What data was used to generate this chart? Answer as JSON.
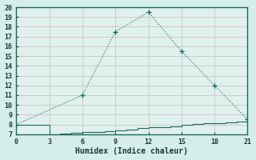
{
  "xlabel": "Humidex (Indice chaleur)",
  "bg_color": "#d6eeea",
  "plot_bg_color": "#dff0ed",
  "grid_color": "#c8bfc0",
  "line_color": "#1a6b5a",
  "line1_x": [
    0,
    6,
    9,
    12,
    15,
    18,
    21
  ],
  "line1_y": [
    8,
    11,
    17.5,
    19.5,
    15.5,
    12,
    8.5
  ],
  "line2_x": [
    0,
    1,
    2,
    3,
    4,
    5,
    6,
    7,
    8,
    9,
    10,
    11,
    12,
    13,
    14,
    15,
    16,
    17,
    18,
    19,
    20,
    21
  ],
  "line2_y": [
    8,
    8,
    8,
    7,
    7.1,
    7.15,
    7.2,
    7.25,
    7.3,
    7.4,
    7.5,
    7.6,
    7.7,
    7.75,
    7.8,
    8.0,
    8.05,
    8.1,
    8.15,
    8.2,
    8.3,
    8.5
  ],
  "xlim": [
    0,
    21
  ],
  "ylim": [
    7,
    20
  ],
  "xticks": [
    0,
    3,
    6,
    9,
    12,
    15,
    18,
    21
  ],
  "yticks": [
    7,
    8,
    9,
    10,
    11,
    12,
    13,
    14,
    15,
    16,
    17,
    18,
    19,
    20
  ],
  "tick_fontsize": 6,
  "xlabel_fontsize": 7
}
